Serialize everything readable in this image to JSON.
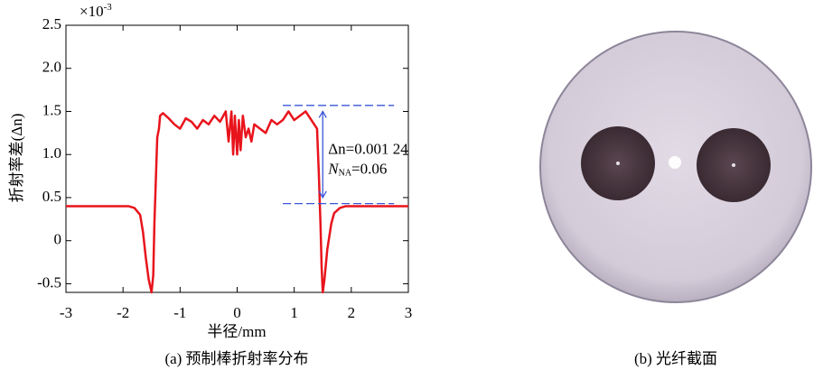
{
  "chart_data": {
    "type": "line",
    "y_scale_label": "×10",
    "y_scale_exponent": "-3",
    "y_label": "折射率差(Δn)",
    "x_label": "半径/mm",
    "caption": "(a) 预制棒折射率分布",
    "xlim": [
      -3,
      3
    ],
    "ylim": [
      -0.6,
      2.5
    ],
    "xticks": [
      -3,
      -2,
      -1,
      0,
      1,
      2,
      3
    ],
    "yticks": [
      {
        "value": -0.5,
        "label": "-0.5"
      },
      0,
      0.5,
      {
        "value": 1,
        "label": "1.0"
      },
      1.5,
      {
        "value": 2,
        "label": "2.0"
      },
      2.5
    ],
    "series": [
      {
        "color": "#e8141c",
        "x": [
          -3,
          -2.5,
          -1.9,
          -1.8,
          -1.7,
          -1.65,
          -1.6,
          -1.55,
          -1.5,
          -1.47,
          -1.45,
          -1.42,
          -1.4,
          -1.37,
          -1.35,
          -1.3,
          -1.2,
          -1.1,
          -1.0,
          -0.9,
          -0.8,
          -0.7,
          -0.6,
          -0.5,
          -0.4,
          -0.3,
          -0.2,
          -0.15,
          -0.1,
          -0.07,
          -0.04,
          0,
          0.03,
          0.06,
          0.1,
          0.15,
          0.2,
          0.25,
          0.3,
          0.4,
          0.5,
          0.6,
          0.7,
          0.8,
          0.9,
          1.0,
          1.1,
          1.2,
          1.3,
          1.35,
          1.4,
          1.43,
          1.46,
          1.48,
          1.5,
          1.53,
          1.58,
          1.65,
          1.7,
          1.8,
          1.9,
          2.5,
          3
        ],
        "values": [
          0.4,
          0.4,
          0.4,
          0.38,
          0.3,
          0.1,
          -0.2,
          -0.45,
          -0.6,
          -0.4,
          0.2,
          0.8,
          1.2,
          1.3,
          1.45,
          1.48,
          1.42,
          1.35,
          1.3,
          1.42,
          1.38,
          1.3,
          1.4,
          1.35,
          1.45,
          1.38,
          1.5,
          1.15,
          1.5,
          1.0,
          1.45,
          1.0,
          1.4,
          1.05,
          1.45,
          1.2,
          1.3,
          1.15,
          1.35,
          1.3,
          1.25,
          1.4,
          1.35,
          1.4,
          1.5,
          1.4,
          1.45,
          1.5,
          1.4,
          1.35,
          1.3,
          0.8,
          0.2,
          -0.3,
          -0.6,
          -0.45,
          -0.1,
          0.2,
          0.32,
          0.38,
          0.4,
          0.4,
          0.4
        ]
      }
    ],
    "reference_lines": [
      {
        "y": 1.57,
        "x": [
          0.8,
          2.75
        ],
        "color": "#3a55d8"
      },
      {
        "y": 0.43,
        "x": [
          0.8,
          2.75
        ],
        "color": "#3a55d8"
      }
    ],
    "arrow": {
      "x": 1.5,
      "y": [
        1.5,
        0.5
      ],
      "color": "#3a55d8"
    },
    "annotations": [
      {
        "text": "Δn=0.001 24"
      },
      {
        "text": "N",
        "subscript": "NA",
        "suffix": "=0.06"
      }
    ]
  },
  "photo": {
    "caption": "(b) 光纤截面"
  }
}
